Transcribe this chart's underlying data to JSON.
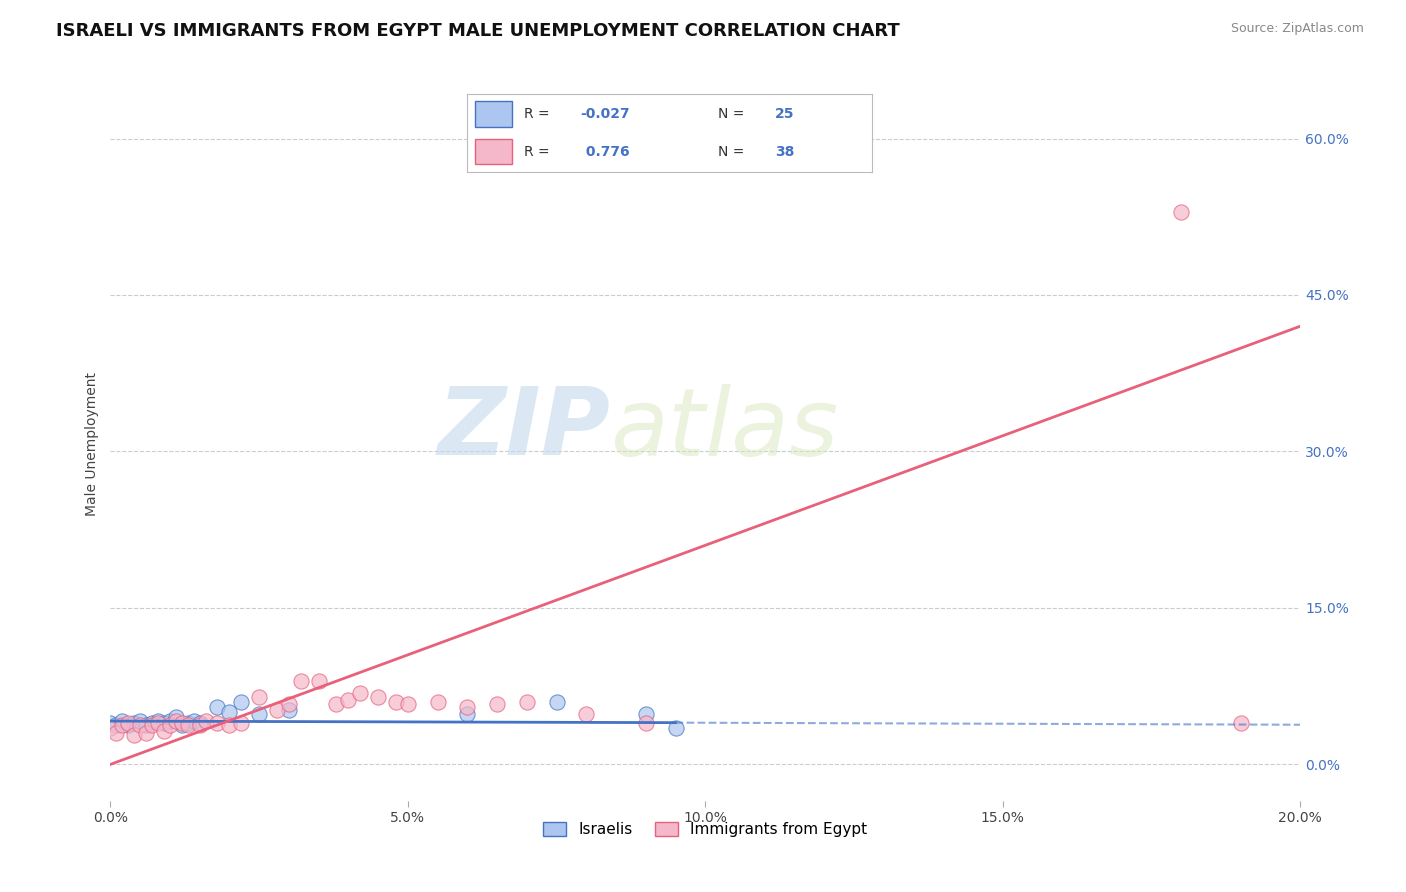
{
  "title": "ISRAELI VS IMMIGRANTS FROM EGYPT MALE UNEMPLOYMENT CORRELATION CHART",
  "source": "Source: ZipAtlas.com",
  "ylabel": "Male Unemployment",
  "xlim": [
    0.0,
    0.2
  ],
  "ylim": [
    -0.035,
    0.65
  ],
  "yticks": [
    0.0,
    0.15,
    0.3,
    0.45,
    0.6
  ],
  "ytick_labels": [
    "0.0%",
    "15.0%",
    "30.0%",
    "45.0%",
    "60.0%"
  ],
  "xticks": [
    0.0,
    0.05,
    0.1,
    0.15,
    0.2
  ],
  "xtick_labels": [
    "0.0%",
    "5.0%",
    "10.0%",
    "15.0%",
    "20.0%"
  ],
  "israeli_R": -0.027,
  "israeli_N": 25,
  "egypt_R": 0.776,
  "egypt_N": 38,
  "israeli_color": "#adc6ef",
  "egypt_color": "#f5b8cb",
  "israeli_line_color": "#4472c4",
  "egypt_line_color": "#e8607a",
  "legend_labels": [
    "Israelis",
    "Immigrants from Egypt"
  ],
  "watermark_zip": "ZIP",
  "watermark_atlas": "atlas",
  "title_fontsize": 13,
  "axis_label_fontsize": 10,
  "tick_fontsize": 10,
  "israelis_x": [
    0.0,
    0.001,
    0.002,
    0.003,
    0.004,
    0.005,
    0.006,
    0.007,
    0.008,
    0.009,
    0.01,
    0.011,
    0.012,
    0.013,
    0.014,
    0.015,
    0.018,
    0.02,
    0.022,
    0.025,
    0.03,
    0.06,
    0.075,
    0.09,
    0.095
  ],
  "israelis_y": [
    0.04,
    0.038,
    0.042,
    0.038,
    0.04,
    0.042,
    0.038,
    0.04,
    0.042,
    0.04,
    0.042,
    0.045,
    0.038,
    0.04,
    0.042,
    0.04,
    0.055,
    0.05,
    0.06,
    0.048,
    0.052,
    0.048,
    0.06,
    0.048,
    0.035
  ],
  "egypt_x": [
    0.0,
    0.001,
    0.002,
    0.003,
    0.004,
    0.005,
    0.006,
    0.007,
    0.008,
    0.009,
    0.01,
    0.011,
    0.012,
    0.013,
    0.015,
    0.016,
    0.018,
    0.02,
    0.022,
    0.025,
    0.028,
    0.03,
    0.032,
    0.035,
    0.038,
    0.04,
    0.042,
    0.045,
    0.048,
    0.05,
    0.055,
    0.06,
    0.065,
    0.07,
    0.08,
    0.09,
    0.18,
    0.19
  ],
  "egypt_y": [
    0.035,
    0.03,
    0.038,
    0.04,
    0.028,
    0.038,
    0.03,
    0.038,
    0.04,
    0.032,
    0.038,
    0.042,
    0.04,
    0.038,
    0.038,
    0.042,
    0.04,
    0.038,
    0.04,
    0.065,
    0.052,
    0.058,
    0.08,
    0.08,
    0.058,
    0.062,
    0.068,
    0.065,
    0.06,
    0.058,
    0.06,
    0.055,
    0.058,
    0.06,
    0.048,
    0.04,
    0.53,
    0.04
  ],
  "isr_line_x": [
    0.0,
    0.095
  ],
  "isr_line_y": [
    0.0415,
    0.04
  ],
  "egy_line_x": [
    0.0,
    0.2
  ],
  "egy_line_y": [
    0.0,
    0.42
  ]
}
